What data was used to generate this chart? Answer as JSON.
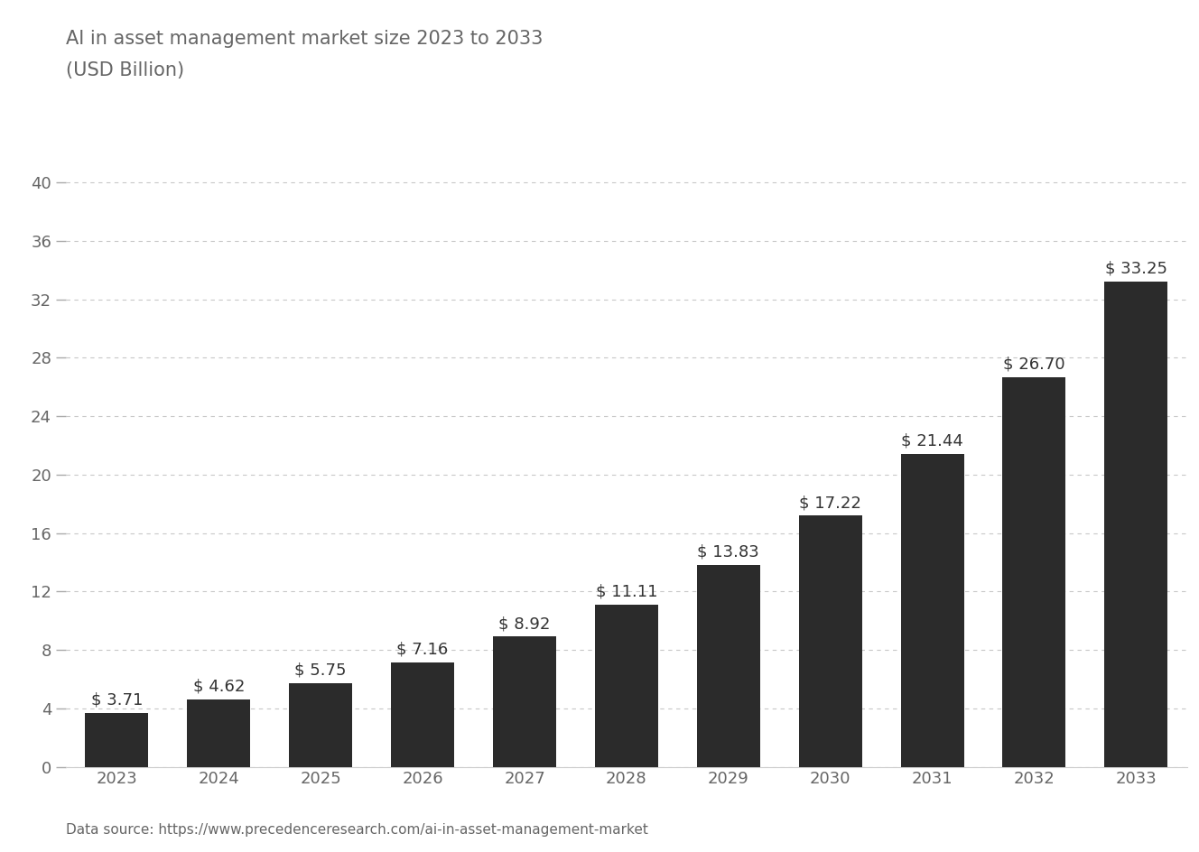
{
  "title_line1": "AI in asset management market size 2023 to 2033",
  "title_line2": "(USD Billion)",
  "years": [
    2023,
    2024,
    2025,
    2026,
    2027,
    2028,
    2029,
    2030,
    2031,
    2032,
    2033
  ],
  "values": [
    3.71,
    4.62,
    5.75,
    7.16,
    8.92,
    11.11,
    13.83,
    17.22,
    21.44,
    26.7,
    33.25
  ],
  "bar_color": "#2b2b2b",
  "background_color": "#ffffff",
  "yticks": [
    0,
    4,
    8,
    12,
    16,
    20,
    24,
    28,
    32,
    36,
    40
  ],
  "ylim": [
    0,
    42
  ],
  "grid_color": "#c8c8c8",
  "text_color": "#666666",
  "label_color": "#333333",
  "title_fontsize": 15,
  "tick_fontsize": 13,
  "label_fontsize": 13,
  "source_text": "Data source: https://www.precedenceresearch.com/ai-in-asset-management-market",
  "source_fontsize": 11
}
